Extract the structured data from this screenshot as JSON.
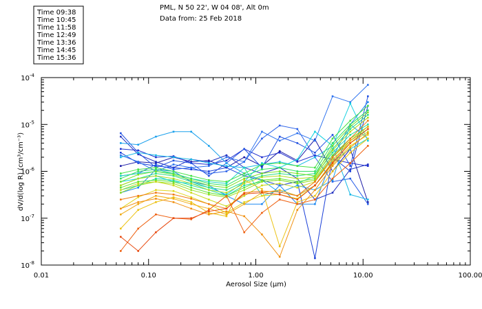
{
  "header": {
    "location": "PML, N 50 22', W 04 08', Alt 0m",
    "date": "Data from: 25 Feb 2018"
  },
  "chart_data": {
    "type": "line",
    "xscale": "log",
    "yscale": "log",
    "xlabel": "Aerosol Size (µm)",
    "ylabel": "dV/d(log R) (cm³/cm⁻³)",
    "xlim": [
      0.01,
      100
    ],
    "ylim": [
      1e-08,
      0.0001
    ],
    "x_ticks": [
      {
        "value": 0.01,
        "label": "0.01"
      },
      {
        "value": 0.1,
        "label": "0.10"
      },
      {
        "value": 1,
        "label": "1.00"
      },
      {
        "value": 10,
        "label": "10.00"
      },
      {
        "value": 100,
        "label": "100.00"
      }
    ],
    "y_ticks": [
      {
        "value": 1e-08,
        "base": "10",
        "exp": "-8"
      },
      {
        "value": 1e-07,
        "base": "10",
        "exp": "-7"
      },
      {
        "value": 1e-06,
        "base": "10",
        "exp": "-6"
      },
      {
        "value": 1e-05,
        "base": "10",
        "exp": "-5"
      },
      {
        "value": 0.0001,
        "base": "10",
        "exp": "-4"
      }
    ],
    "x": [
      0.055,
      0.08,
      0.117,
      0.171,
      0.25,
      0.365,
      0.533,
      0.78,
      1.14,
      1.67,
      2.44,
      3.56,
      5.2,
      7.6,
      11.1
    ],
    "legend": [
      {
        "name": "Time 09:38",
        "color": "#1c1cc8"
      },
      {
        "name": "Time 10:45",
        "color": "#1f6fe0"
      },
      {
        "name": "Time 11:58",
        "color": "#12c6e8"
      },
      {
        "name": "Time 12:49",
        "color": "#2ed67a"
      },
      {
        "name": "Time 13:36",
        "color": "#8fe01e"
      },
      {
        "name": "Time 14:45",
        "color": "#e8e21a"
      },
      {
        "name": "Time 15:36",
        "color": "#f0a010"
      }
    ],
    "series": [
      {
        "name": "s01",
        "color": "#1a1aa6",
        "values": [
          1.3e-06,
          1.6e-06,
          1.5e-06,
          2e-06,
          1.6e-06,
          1.7e-06,
          1.2e-06,
          2e-06,
          1.3e-06,
          2.7e-06,
          1.7e-06,
          4.8e-06,
          1e-06,
          3e-06,
          2.2e-07
        ]
      },
      {
        "name": "s02",
        "color": "#1f2fc0",
        "values": [
          5.5e-06,
          2.3e-06,
          1.6e-06,
          1.2e-06,
          1.8e-06,
          1.6e-06,
          2.2e-06,
          1.2e-06,
          9e-07,
          1.2e-06,
          7e-07,
          2.5e-07,
          3.5e-07,
          1.1e-06,
          1.4e-06
        ]
      },
      {
        "name": "s03",
        "color": "#2030d0",
        "values": [
          3e-06,
          2.8e-06,
          2e-06,
          2.1e-06,
          1.5e-06,
          1.4e-06,
          1.7e-06,
          3e-06,
          2e-06,
          2.5e-06,
          1.6e-06,
          2.2e-06,
          1.8e-06,
          1.5e-06,
          1.3e-06
        ]
      },
      {
        "name": "s04",
        "color": "#1a3fd8",
        "values": [
          2.5e-06,
          1.5e-06,
          1.3e-06,
          1.2e-06,
          1.1e-06,
          1e-06,
          1.2e-06,
          8e-07,
          6.5e-07,
          5e-07,
          6e-07,
          1.4e-08,
          2e-06,
          1e-06,
          2.5e-05
        ]
      },
      {
        "name": "s05",
        "color": "#2050e0",
        "values": [
          6.5e-06,
          2.5e-06,
          1.2e-06,
          1.7e-06,
          1.5e-06,
          8e-07,
          1.5e-06,
          3e-06,
          1.2e-06,
          5.5e-06,
          4e-06,
          2.5e-06,
          6e-06,
          1.3e-06,
          4e-05
        ]
      },
      {
        "name": "s06",
        "color": "#2a60e8",
        "values": [
          8e-07,
          9e-07,
          1.4e-06,
          1.1e-06,
          1.2e-06,
          9e-07,
          1e-06,
          1.6e-06,
          5e-06,
          9.5e-06,
          8e-06,
          2e-06,
          6e-07,
          7e-07,
          2e-07
        ]
      },
      {
        "name": "s07",
        "color": "#2d72ee",
        "values": [
          2.2e-06,
          1.6e-06,
          1e-06,
          1.4e-06,
          1.2e-06,
          1.3e-06,
          2e-06,
          1.6e-06,
          7e-06,
          4.5e-06,
          6.5e-06,
          4.5e-06,
          4e-05,
          3e-05,
          7e-05
        ]
      },
      {
        "name": "s08",
        "color": "#1e88f0",
        "values": [
          3.5e-07,
          4.5e-07,
          1.1e-06,
          1e-06,
          6e-07,
          5e-07,
          3e-07,
          2e-07,
          2e-07,
          5e-07,
          2e-07,
          2e-07,
          2e-06,
          1e-05,
          3e-05
        ]
      },
      {
        "name": "s09",
        "color": "#1aa0ec",
        "values": [
          4e-06,
          3.7e-06,
          5.5e-06,
          7e-06,
          7e-06,
          3.5e-06,
          1.5e-06,
          9e-07,
          6.5e-07,
          3.5e-07,
          5e-07,
          4e-07,
          6.5e-07,
          1e-05,
          5e-06
        ]
      },
      {
        "name": "s10",
        "color": "#18b8e6",
        "values": [
          2e-06,
          2.5e-06,
          2.2e-06,
          2e-06,
          1.8e-06,
          1.5e-06,
          1.3e-06,
          1.2e-06,
          1.4e-06,
          1.6e-06,
          1.3e-06,
          2e-06,
          3.5e-06,
          3.2e-07,
          2.5e-07
        ]
      },
      {
        "name": "s11",
        "color": "#14d0e0",
        "values": [
          6e-07,
          7e-07,
          8e-07,
          6e-07,
          5.5e-07,
          4.5e-07,
          3.2e-07,
          6e-07,
          1.5e-06,
          1.2e-06,
          1.8e-06,
          7e-06,
          3.5e-06,
          2.8e-05,
          4.5e-06
        ]
      },
      {
        "name": "s12",
        "color": "#1ed8c0",
        "values": [
          8e-07,
          9e-07,
          1e-06,
          9e-07,
          7e-07,
          6e-07,
          5.5e-07,
          1.2e-06,
          3e-07,
          4e-07,
          3e-07,
          5e-07,
          1.6e-06,
          3e-06,
          5e-06
        ]
      },
      {
        "name": "s13",
        "color": "#22dca0",
        "values": [
          4e-07,
          5e-07,
          7e-07,
          6.5e-07,
          5e-07,
          4e-07,
          3e-07,
          5e-07,
          6e-07,
          6.5e-07,
          5.5e-07,
          8e-07,
          2.5e-06,
          6e-06,
          1e-05
        ]
      },
      {
        "name": "s14",
        "color": "#28de80",
        "values": [
          5e-07,
          7e-07,
          9e-07,
          8e-07,
          6e-07,
          4.5e-07,
          4e-07,
          6e-07,
          8e-07,
          9e-07,
          8e-07,
          9e-07,
          3e-06,
          8e-06,
          1.6e-05
        ]
      },
      {
        "name": "s15",
        "color": "#34e060",
        "values": [
          7e-07,
          1e-06,
          1.1e-06,
          9e-07,
          7e-07,
          5.5e-07,
          5e-07,
          8e-07,
          1.1e-06,
          1.2e-06,
          1e-06,
          1e-06,
          4e-06,
          1e-05,
          2e-05
        ]
      },
      {
        "name": "s16",
        "color": "#46e246",
        "values": [
          9e-07,
          1.1e-06,
          1.2e-06,
          1e-06,
          8e-07,
          6.5e-07,
          6e-07,
          9e-07,
          1.4e-06,
          1.5e-06,
          1.3e-06,
          1.2e-06,
          5e-06,
          1.2e-05,
          2.5e-05
        ]
      },
      {
        "name": "s17",
        "color": "#5ee230",
        "values": [
          4.5e-07,
          6e-07,
          6.5e-07,
          6e-07,
          4.5e-07,
          3.5e-07,
          3e-07,
          4.5e-07,
          6.5e-07,
          7e-07,
          6e-07,
          7e-07,
          2.2e-06,
          5e-06,
          9e-06
        ]
      },
      {
        "name": "s18",
        "color": "#78e224",
        "values": [
          6e-07,
          8.5e-07,
          1e-06,
          8.5e-07,
          6.5e-07,
          5e-07,
          4.5e-07,
          7e-07,
          9e-07,
          1e-06,
          9e-07,
          8e-07,
          3.5e-06,
          9e-06,
          1.8e-05
        ]
      },
      {
        "name": "s19",
        "color": "#92e01e",
        "values": [
          3.5e-07,
          5e-07,
          6e-07,
          5.5e-07,
          4e-07,
          3.2e-07,
          2.8e-07,
          4e-07,
          6e-07,
          6.5e-07,
          5.5e-07,
          6.5e-07,
          2e-06,
          4.5e-06,
          8e-06
        ]
      },
      {
        "name": "s20",
        "color": "#b0dc1a",
        "values": [
          5e-07,
          7e-07,
          8e-07,
          7e-07,
          5.5e-07,
          4e-07,
          3.5e-07,
          5.5e-07,
          7.5e-07,
          8e-07,
          7e-07,
          7.5e-07,
          2.8e-06,
          7e-06,
          1.4e-05
        ]
      },
      {
        "name": "s21",
        "color": "#cad81a",
        "values": [
          4e-07,
          5.5e-07,
          6e-07,
          5e-07,
          3.5e-07,
          2.5e-07,
          1.8e-07,
          3e-07,
          5e-07,
          5.5e-07,
          4.5e-07,
          6e-07,
          1.8e-06,
          4e-06,
          7e-06
        ]
      },
      {
        "name": "s22",
        "color": "#e0d41a",
        "values": [
          1.6e-07,
          2.8e-07,
          4e-07,
          3.8e-07,
          2.8e-07,
          2e-07,
          1.3e-07,
          2.2e-07,
          3e-07,
          3.2e-07,
          2.6e-07,
          5e-07,
          1.4e-06,
          3.5e-06,
          6e-06
        ]
      },
      {
        "name": "s23",
        "color": "#ecc214",
        "values": [
          6e-08,
          1.5e-07,
          2.2e-07,
          2.8e-07,
          2.2e-07,
          1.3e-07,
          1.1e-07,
          6.5e-07,
          4.2e-07,
          2.5e-08,
          2.2e-07,
          3e-07,
          1e-06,
          2.5e-06,
          5e-06
        ]
      },
      {
        "name": "s24",
        "color": "#f0aa10",
        "values": [
          1.2e-07,
          2e-07,
          3e-07,
          2.6e-07,
          2e-07,
          1.6e-07,
          1.2e-07,
          2e-07,
          3.5e-07,
          4e-07,
          3e-07,
          5e-07,
          1.6e-06,
          4.5e-06,
          9e-06
        ]
      },
      {
        "name": "s25",
        "color": "#f09010",
        "values": [
          1.6e-07,
          2.2e-07,
          2.6e-07,
          2.2e-07,
          1.6e-07,
          1.2e-07,
          1.4e-07,
          1.1e-07,
          4.5e-08,
          1.5e-08,
          1.5e-07,
          4e-07,
          1.3e-06,
          3.2e-06,
          6.5e-06
        ]
      },
      {
        "name": "s26",
        "color": "#f07810",
        "values": [
          2.5e-07,
          3e-07,
          3.5e-07,
          3.2e-07,
          2.6e-07,
          2e-07,
          1.6e-07,
          3.5e-07,
          3.8e-07,
          3.6e-07,
          3e-07,
          6e-07,
          2e-06,
          5e-06,
          1.2e-05
        ]
      },
      {
        "name": "s27",
        "color": "#ee6010",
        "values": [
          2e-08,
          6e-08,
          1.2e-07,
          1e-07,
          9.5e-08,
          1.5e-07,
          3e-07,
          5e-08,
          1.3e-07,
          2.5e-07,
          2e-07,
          2.5e-07,
          7e-07,
          1.5e-06,
          3.5e-06
        ]
      },
      {
        "name": "s28",
        "color": "#e84a10",
        "values": [
          4e-08,
          2e-08,
          5e-08,
          1e-07,
          1e-07,
          1.4e-07,
          1.6e-07,
          3.3e-07,
          3.5e-07,
          3.2e-07,
          2.5e-07,
          5e-07,
          1.5e-06,
          4e-06,
          8e-06
        ]
      }
    ]
  }
}
